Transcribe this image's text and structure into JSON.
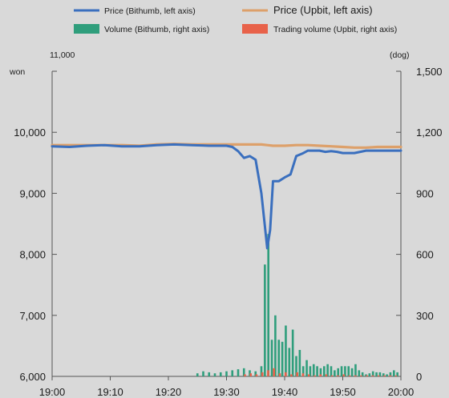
{
  "chart_data": {
    "type": "line",
    "legend": [
      {
        "name": "Price (Bithumb, left axis)",
        "kind": "line",
        "color": "#3a6fbe"
      },
      {
        "name": "Price (Upbit, left axis)",
        "kind": "line",
        "color": "#dda06a"
      },
      {
        "name": "Volume (Bithumb, right axis)",
        "kind": "bar",
        "color": "#2f9e7c"
      },
      {
        "name": "Trading volume (Upbit, right axis)",
        "kind": "bar",
        "color": "#e8624a"
      }
    ],
    "y_left": {
      "unit_label": "won",
      "top_label": "11,000",
      "range": [
        6000,
        11000
      ],
      "ticks": [
        6000,
        7000,
        8000,
        9000,
        10000
      ],
      "tick_labels": [
        "6,000",
        "7,000",
        "8,000",
        "9,000",
        "10,000"
      ]
    },
    "y_right": {
      "unit_label": "(dog)",
      "range": [
        0,
        1500
      ],
      "ticks": [
        0,
        300,
        600,
        900,
        1200,
        1500
      ],
      "tick_labels": [
        "0",
        "300",
        "600",
        "900",
        "1,200",
        "1,500"
      ]
    },
    "x_axis": {
      "range_minutes": [
        0,
        60
      ],
      "ticks": [
        0,
        10,
        20,
        30,
        40,
        50,
        60
      ],
      "tick_labels": [
        "19:00",
        "19:10",
        "19:20",
        "19:30",
        "19:40",
        "19:50",
        "20:00"
      ]
    },
    "series": [
      {
        "name": "Price (Bithumb, left axis)",
        "axis": "left",
        "color": "#3a6fbe",
        "x": [
          0,
          3,
          6,
          9,
          12,
          15,
          18,
          21,
          24,
          27,
          30,
          31,
          32,
          33,
          34,
          35,
          36,
          37,
          37.5,
          38,
          39,
          40,
          41,
          42,
          43,
          44,
          45,
          46,
          47,
          48,
          49,
          50,
          51,
          52,
          53,
          54,
          55,
          56,
          57,
          58,
          59,
          60
        ],
        "y": [
          9770,
          9760,
          9780,
          9790,
          9770,
          9770,
          9790,
          9800,
          9790,
          9780,
          9780,
          9760,
          9690,
          9580,
          9610,
          9550,
          9000,
          8100,
          8400,
          9200,
          9200,
          9260,
          9310,
          9610,
          9650,
          9700,
          9700,
          9700,
          9680,
          9690,
          9680,
          9660,
          9660,
          9660,
          9680,
          9700,
          9700,
          9700,
          9700,
          9700,
          9700,
          9700
        ]
      },
      {
        "name": "Price (Upbit, left axis)",
        "axis": "left",
        "color": "#dda06a",
        "x": [
          0,
          3,
          6,
          9,
          12,
          15,
          18,
          21,
          24,
          27,
          30,
          33,
          36,
          37,
          38,
          40,
          42,
          44,
          46,
          48,
          50,
          52,
          54,
          56,
          58,
          60
        ],
        "y": [
          9790,
          9790,
          9790,
          9790,
          9790,
          9780,
          9800,
          9810,
          9800,
          9800,
          9800,
          9800,
          9800,
          9790,
          9780,
          9780,
          9790,
          9790,
          9780,
          9770,
          9760,
          9750,
          9750,
          9760,
          9760,
          9760
        ]
      },
      {
        "name": "Volume (Bithumb, right axis)",
        "axis": "right",
        "color": "#2f9e7c",
        "x": [
          25,
          26,
          27,
          28,
          29,
          30,
          31,
          32,
          33,
          34,
          35,
          36,
          36.6,
          37.2,
          37.8,
          38.4,
          39,
          39.6,
          40.2,
          40.8,
          41.4,
          42,
          42.6,
          43.2,
          43.8,
          44.4,
          45,
          45.6,
          46.2,
          46.8,
          47.4,
          48,
          48.6,
          49.2,
          49.8,
          50.4,
          51,
          51.6,
          52.2,
          52.8,
          53.4,
          54,
          54.6,
          55.2,
          55.8,
          56.4,
          57,
          57.6,
          58.2,
          58.8,
          59.4
        ],
        "values": [
          15,
          25,
          20,
          15,
          20,
          25,
          30,
          35,
          40,
          30,
          25,
          50,
          550,
          700,
          180,
          300,
          180,
          170,
          250,
          140,
          230,
          100,
          130,
          50,
          80,
          50,
          60,
          50,
          40,
          50,
          60,
          50,
          30,
          40,
          50,
          50,
          50,
          40,
          60,
          30,
          20,
          10,
          15,
          25,
          20,
          20,
          15,
          10,
          20,
          30,
          20
        ]
      },
      {
        "name": "Trading volume (Upbit, right axis)",
        "axis": "right",
        "color": "#e8624a",
        "x": [
          33,
          34,
          35,
          36,
          37,
          38,
          39,
          40,
          41,
          42,
          43,
          44,
          45,
          46,
          47,
          48,
          49,
          50,
          51,
          52,
          53,
          54,
          55,
          56,
          57,
          58,
          59
        ],
        "values": [
          10,
          15,
          10,
          20,
          30,
          40,
          15,
          20,
          10,
          20,
          15,
          10,
          5,
          10,
          10,
          5,
          5,
          10,
          5,
          5,
          5,
          5,
          5,
          5,
          5,
          5,
          5
        ]
      }
    ]
  }
}
